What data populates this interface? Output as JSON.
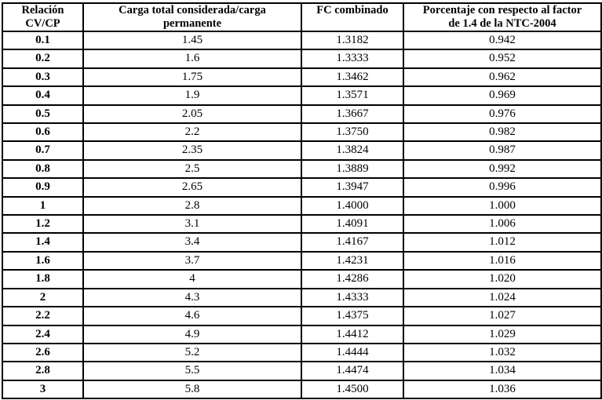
{
  "colors": {
    "background": "#ffffff",
    "border": "#000000",
    "text": "#000000"
  },
  "table": {
    "columns": [
      {
        "id": "relacion-cv-cp",
        "label": "Relación\nCV/CP"
      },
      {
        "id": "carga-total",
        "label": "Carga total considerada/carga\npermanente"
      },
      {
        "id": "fc-combinado",
        "label": "FC combinado"
      },
      {
        "id": "porcentaje-ntc",
        "label": "Porcentaje con respecto al factor\nde 1.4 de la NTC-2004"
      }
    ],
    "rows": [
      [
        "0.1",
        "1.45",
        "1.3182",
        "0.942"
      ],
      [
        "0.2",
        "1.6",
        "1.3333",
        "0.952"
      ],
      [
        "0.3",
        "1.75",
        "1.3462",
        "0.962"
      ],
      [
        "0.4",
        "1.9",
        "1.3571",
        "0.969"
      ],
      [
        "0.5",
        "2.05",
        "1.3667",
        "0.976"
      ],
      [
        "0.6",
        "2.2",
        "1.3750",
        "0.982"
      ],
      [
        "0.7",
        "2.35",
        "1.3824",
        "0.987"
      ],
      [
        "0.8",
        "2.5",
        "1.3889",
        "0.992"
      ],
      [
        "0.9",
        "2.65",
        "1.3947",
        "0.996"
      ],
      [
        "1",
        "2.8",
        "1.4000",
        "1.000"
      ],
      [
        "1.2",
        "3.1",
        "1.4091",
        "1.006"
      ],
      [
        "1.4",
        "3.4",
        "1.4167",
        "1.012"
      ],
      [
        "1.6",
        "3.7",
        "1.4231",
        "1.016"
      ],
      [
        "1.8",
        "4",
        "1.4286",
        "1.020"
      ],
      [
        "2",
        "4.3",
        "1.4333",
        "1.024"
      ],
      [
        "2.2",
        "4.6",
        "1.4375",
        "1.027"
      ],
      [
        "2.4",
        "4.9",
        "1.4412",
        "1.029"
      ],
      [
        "2.6",
        "5.2",
        "1.4444",
        "1.032"
      ],
      [
        "2.8",
        "5.5",
        "1.4474",
        "1.034"
      ],
      [
        "3",
        "5.8",
        "1.4500",
        "1.036"
      ]
    ]
  }
}
